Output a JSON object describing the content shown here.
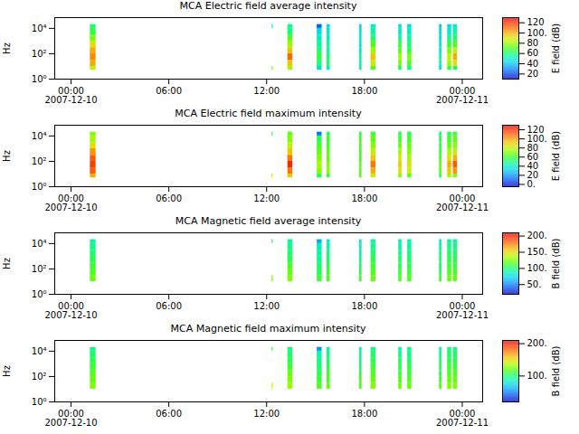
{
  "chart_data": [
    {
      "type": "heatmap",
      "title": "MCA  Electric field average intensity",
      "ylabel": "Hz",
      "log": "y",
      "xlim": [
        "2007-12-09T23:00",
        "2007-12-11T01:15"
      ],
      "xticks": [
        {
          "value": "2007-12-10T00:00",
          "label": "00:00\n2007-12-10"
        },
        {
          "value": "2007-12-10T06:00",
          "label": "06:00"
        },
        {
          "value": "2007-12-10T12:00",
          "label": "12:00"
        },
        {
          "value": "2007-12-10T18:00",
          "label": "18:00"
        },
        {
          "value": "2007-12-11T00:00",
          "label": "00:00\n2007-12-11"
        }
      ],
      "ylim": [
        1,
        70000
      ],
      "yticks": [
        {
          "value": 1,
          "label": "10⁰"
        },
        {
          "value": 100,
          "label": "10²"
        },
        {
          "value": 10000,
          "label": "10⁴"
        }
      ],
      "frequency_bins": [
        5,
        10,
        30,
        100,
        300,
        1000,
        3000,
        10000,
        20000
      ],
      "bursts": [
        {
          "start": "2007-12-10T01:11",
          "end": "2007-12-10T01:32",
          "values": [
            85,
            100,
            105,
            100,
            90,
            75,
            65,
            60
          ]
        },
        {
          "start": "2007-12-10T12:20",
          "end": "2007-12-10T12:24",
          "values": [
            75,
            null,
            null,
            null,
            null,
            null,
            null,
            45
          ]
        },
        {
          "start": "2007-12-10T13:18",
          "end": "2007-12-10T13:36",
          "values": [
            80,
            95,
            110,
            95,
            80,
            70,
            60,
            55
          ]
        },
        {
          "start": "2007-12-10T15:06",
          "end": "2007-12-10T15:24",
          "values": [
            45,
            60,
            65,
            60,
            55,
            50,
            45,
            25
          ]
        },
        {
          "start": "2007-12-10T15:42",
          "end": "2007-12-10T15:54",
          "values": [
            50,
            60,
            60,
            55,
            55,
            50,
            50,
            45
          ]
        },
        {
          "start": "2007-12-10T17:42",
          "end": "2007-12-10T17:51",
          "values": [
            55,
            55,
            55,
            50,
            50,
            50,
            50,
            45
          ]
        },
        {
          "start": "2007-12-10T18:24",
          "end": "2007-12-10T18:42",
          "values": [
            70,
            85,
            95,
            80,
            70,
            60,
            55,
            50
          ]
        },
        {
          "start": "2007-12-10T20:06",
          "end": "2007-12-10T20:18",
          "values": [
            60,
            75,
            80,
            70,
            65,
            55,
            50,
            45
          ]
        },
        {
          "start": "2007-12-10T20:39",
          "end": "2007-12-10T20:54",
          "values": [
            55,
            70,
            75,
            65,
            60,
            55,
            50,
            45
          ]
        },
        {
          "start": "2007-12-10T22:36",
          "end": "2007-12-10T22:45",
          "values": [
            45,
            55,
            55,
            50,
            50,
            45,
            45,
            40
          ]
        },
        {
          "start": "2007-12-10T23:06",
          "end": "2007-12-10T23:21",
          "values": [
            65,
            80,
            85,
            75,
            65,
            55,
            50,
            45
          ]
        },
        {
          "start": "2007-12-10T23:27",
          "end": "2007-12-10T23:42",
          "values": [
            60,
            90,
            100,
            85,
            70,
            60,
            55,
            50
          ]
        }
      ],
      "colorbar": {
        "label": "E field (dB)",
        "range": [
          10,
          130
        ],
        "ticks": [
          20,
          40,
          60,
          80,
          {
            "value": 100,
            "label": "100."
          },
          120
        ]
      }
    },
    {
      "type": "heatmap",
      "title": "MCA  Electric field maximum intensity",
      "ylabel": "Hz",
      "log": "y",
      "xlim": [
        "2007-12-09T23:00",
        "2007-12-11T01:15"
      ],
      "xticks": [
        {
          "value": "2007-12-10T00:00",
          "label": "00:00\n2007-12-10"
        },
        {
          "value": "2007-12-10T06:00",
          "label": "06:00"
        },
        {
          "value": "2007-12-10T12:00",
          "label": "12:00"
        },
        {
          "value": "2007-12-10T18:00",
          "label": "18:00"
        },
        {
          "value": "2007-12-11T00:00",
          "label": "00:00\n2007-12-11"
        }
      ],
      "ylim": [
        1,
        70000
      ],
      "yticks": [
        {
          "value": 1,
          "label": "10⁰"
        },
        {
          "value": 100,
          "label": "10²"
        },
        {
          "value": 10000,
          "label": "10⁴"
        }
      ],
      "frequency_bins": [
        5,
        10,
        30,
        100,
        300,
        1000,
        3000,
        10000,
        20000
      ],
      "bursts": [
        {
          "start": "2007-12-10T01:11",
          "end": "2007-12-10T01:32",
          "values": [
            95,
            110,
            115,
            110,
            100,
            85,
            75,
            70
          ]
        },
        {
          "start": "2007-12-10T12:20",
          "end": "2007-12-10T12:24",
          "values": [
            85,
            null,
            null,
            null,
            null,
            null,
            null,
            55
          ]
        },
        {
          "start": "2007-12-10T13:18",
          "end": "2007-12-10T13:36",
          "values": [
            90,
            105,
            120,
            105,
            90,
            80,
            70,
            65
          ]
        },
        {
          "start": "2007-12-10T15:06",
          "end": "2007-12-10T15:24",
          "values": [
            55,
            70,
            75,
            70,
            65,
            60,
            55,
            15
          ]
        },
        {
          "start": "2007-12-10T15:42",
          "end": "2007-12-10T15:54",
          "values": [
            60,
            70,
            70,
            65,
            65,
            60,
            60,
            55
          ]
        },
        {
          "start": "2007-12-10T17:42",
          "end": "2007-12-10T17:51",
          "values": [
            65,
            65,
            65,
            60,
            60,
            60,
            60,
            55
          ]
        },
        {
          "start": "2007-12-10T18:24",
          "end": "2007-12-10T18:42",
          "values": [
            80,
            95,
            105,
            90,
            80,
            70,
            65,
            60
          ]
        },
        {
          "start": "2007-12-10T20:06",
          "end": "2007-12-10T20:18",
          "values": [
            70,
            85,
            90,
            80,
            75,
            65,
            60,
            55
          ]
        },
        {
          "start": "2007-12-10T20:39",
          "end": "2007-12-10T20:54",
          "values": [
            65,
            80,
            85,
            75,
            70,
            65,
            60,
            55
          ]
        },
        {
          "start": "2007-12-10T22:36",
          "end": "2007-12-10T22:45",
          "values": [
            55,
            65,
            65,
            60,
            60,
            55,
            55,
            50
          ]
        },
        {
          "start": "2007-12-10T23:06",
          "end": "2007-12-10T23:21",
          "values": [
            75,
            90,
            95,
            85,
            75,
            65,
            60,
            55
          ]
        },
        {
          "start": "2007-12-10T23:27",
          "end": "2007-12-10T23:42",
          "values": [
            70,
            100,
            110,
            95,
            80,
            70,
            65,
            60
          ]
        }
      ],
      "colorbar": {
        "label": "E field (dB)",
        "range": [
          -5,
          130
        ],
        "ticks": [
          {
            "value": 0,
            "label": "0."
          },
          20,
          40,
          60,
          80,
          {
            "value": 100,
            "label": "100."
          },
          120
        ]
      }
    },
    {
      "type": "heatmap",
      "title": "MCA  Magnetic field average intensity",
      "ylabel": "Hz",
      "log": "y",
      "xlim": [
        "2007-12-09T23:00",
        "2007-12-11T01:15"
      ],
      "xticks": [
        {
          "value": "2007-12-10T00:00",
          "label": "00:00\n2007-12-10"
        },
        {
          "value": "2007-12-10T06:00",
          "label": "06:00"
        },
        {
          "value": "2007-12-10T12:00",
          "label": "12:00"
        },
        {
          "value": "2007-12-10T18:00",
          "label": "18:00"
        },
        {
          "value": "2007-12-11T00:00",
          "label": "00:00\n2007-12-11"
        }
      ],
      "ylim": [
        1,
        70000
      ],
      "yticks": [
        {
          "value": 1,
          "label": "10⁰"
        },
        {
          "value": 100,
          "label": "10²"
        },
        {
          "value": 10000,
          "label": "10⁴"
        }
      ],
      "frequency_bins": [
        5,
        10,
        30,
        100,
        300,
        1000,
        3000,
        10000,
        20000
      ],
      "bursts": [
        {
          "start": "2007-12-10T01:11",
          "end": "2007-12-10T01:32",
          "values": [
            null,
            120,
            115,
            110,
            105,
            100,
            95,
            90
          ]
        },
        {
          "start": "2007-12-10T12:20",
          "end": "2007-12-10T12:24",
          "values": [
            null,
            120,
            null,
            null,
            null,
            null,
            null,
            100
          ]
        },
        {
          "start": "2007-12-10T13:18",
          "end": "2007-12-10T13:36",
          "values": [
            null,
            125,
            120,
            115,
            105,
            100,
            95,
            90
          ]
        },
        {
          "start": "2007-12-10T15:06",
          "end": "2007-12-10T15:24",
          "values": [
            null,
            110,
            105,
            100,
            95,
            90,
            85,
            60
          ]
        },
        {
          "start": "2007-12-10T15:42",
          "end": "2007-12-10T15:54",
          "values": [
            null,
            115,
            110,
            105,
            100,
            95,
            90,
            85
          ]
        },
        {
          "start": "2007-12-10T17:42",
          "end": "2007-12-10T17:51",
          "values": [
            null,
            110,
            105,
            100,
            95,
            90,
            90,
            85
          ]
        },
        {
          "start": "2007-12-10T18:24",
          "end": "2007-12-10T18:42",
          "values": [
            null,
            120,
            115,
            110,
            105,
            100,
            95,
            90
          ]
        },
        {
          "start": "2007-12-10T20:06",
          "end": "2007-12-10T20:18",
          "values": [
            null,
            115,
            110,
            105,
            100,
            95,
            90,
            85
          ]
        },
        {
          "start": "2007-12-10T20:39",
          "end": "2007-12-10T20:54",
          "values": [
            null,
            115,
            110,
            105,
            100,
            95,
            90,
            90
          ]
        },
        {
          "start": "2007-12-10T22:36",
          "end": "2007-12-10T22:45",
          "values": [
            null,
            110,
            105,
            100,
            100,
            95,
            90,
            85
          ]
        },
        {
          "start": "2007-12-10T23:06",
          "end": "2007-12-10T23:21",
          "values": [
            null,
            120,
            115,
            110,
            105,
            100,
            95,
            90
          ]
        },
        {
          "start": "2007-12-10T23:27",
          "end": "2007-12-10T23:42",
          "values": [
            null,
            120,
            115,
            110,
            105,
            100,
            95,
            90
          ]
        }
      ],
      "colorbar": {
        "label": "B field (dB)",
        "range": [
          20,
          210
        ],
        "ticks": [
          {
            "value": 50,
            "label": "50."
          },
          {
            "value": 100,
            "label": "100."
          },
          {
            "value": 150,
            "label": "150."
          },
          {
            "value": 200,
            "label": "200."
          }
        ]
      }
    },
    {
      "type": "heatmap",
      "title": "MCA  Magnetic field maximum intensity",
      "ylabel": "Hz",
      "log": "y",
      "xlim": [
        "2007-12-09T23:00",
        "2007-12-11T01:15"
      ],
      "xticks": [
        {
          "value": "2007-12-10T00:00",
          "label": "00:00\n2007-12-10"
        },
        {
          "value": "2007-12-10T06:00",
          "label": "06:00"
        },
        {
          "value": "2007-12-10T12:00",
          "label": "12:00"
        },
        {
          "value": "2007-12-10T18:00",
          "label": "18:00"
        },
        {
          "value": "2007-12-11T00:00",
          "label": "00:00\n2007-12-11"
        }
      ],
      "ylim": [
        1,
        70000
      ],
      "yticks": [
        {
          "value": 1,
          "label": "10⁰"
        },
        {
          "value": 100,
          "label": "10²"
        },
        {
          "value": 10000,
          "label": "10⁴"
        }
      ],
      "frequency_bins": [
        5,
        10,
        30,
        100,
        300,
        1000,
        3000,
        10000,
        20000
      ],
      "bursts": [
        {
          "start": "2007-12-10T01:11",
          "end": "2007-12-10T01:32",
          "values": [
            null,
            125,
            120,
            115,
            110,
            105,
            100,
            95
          ]
        },
        {
          "start": "2007-12-10T12:20",
          "end": "2007-12-10T12:24",
          "values": [
            null,
            140,
            null,
            null,
            null,
            null,
            null,
            105
          ]
        },
        {
          "start": "2007-12-10T13:18",
          "end": "2007-12-10T13:36",
          "values": [
            null,
            130,
            125,
            120,
            110,
            105,
            100,
            95
          ]
        },
        {
          "start": "2007-12-10T15:06",
          "end": "2007-12-10T15:24",
          "values": [
            null,
            115,
            110,
            105,
            100,
            95,
            90,
            55
          ]
        },
        {
          "start": "2007-12-10T15:42",
          "end": "2007-12-10T15:54",
          "values": [
            null,
            120,
            115,
            110,
            105,
            100,
            95,
            90
          ]
        },
        {
          "start": "2007-12-10T17:42",
          "end": "2007-12-10T17:51",
          "values": [
            null,
            115,
            110,
            105,
            100,
            95,
            95,
            90
          ]
        },
        {
          "start": "2007-12-10T18:24",
          "end": "2007-12-10T18:42",
          "values": [
            null,
            125,
            120,
            115,
            110,
            105,
            100,
            95
          ]
        },
        {
          "start": "2007-12-10T20:06",
          "end": "2007-12-10T20:18",
          "values": [
            null,
            120,
            115,
            110,
            105,
            100,
            95,
            90
          ]
        },
        {
          "start": "2007-12-10T20:39",
          "end": "2007-12-10T20:54",
          "values": [
            null,
            120,
            115,
            110,
            105,
            100,
            95,
            95
          ]
        },
        {
          "start": "2007-12-10T22:36",
          "end": "2007-12-10T22:45",
          "values": [
            null,
            115,
            110,
            105,
            105,
            100,
            95,
            90
          ]
        },
        {
          "start": "2007-12-10T23:06",
          "end": "2007-12-10T23:21",
          "values": [
            null,
            125,
            120,
            115,
            110,
            105,
            100,
            95
          ]
        },
        {
          "start": "2007-12-10T23:27",
          "end": "2007-12-10T23:42",
          "values": [
            null,
            125,
            120,
            115,
            110,
            105,
            100,
            95
          ]
        }
      ],
      "colorbar": {
        "label": "B field (dB)",
        "range": [
          20,
          210
        ],
        "ticks": [
          {
            "value": 100,
            "label": "100."
          },
          {
            "value": 200,
            "label": "200."
          }
        ]
      }
    }
  ]
}
